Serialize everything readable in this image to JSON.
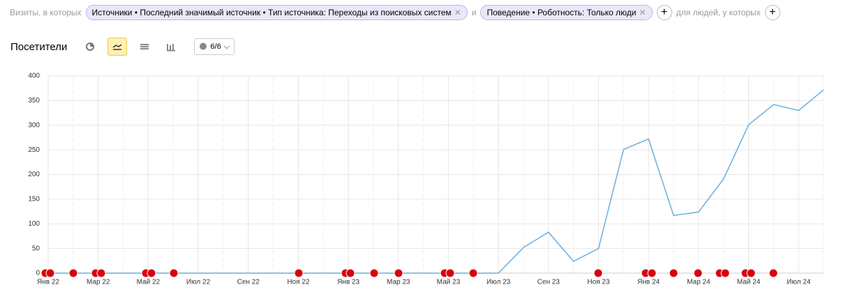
{
  "filters": {
    "prefix": "Визиты, в которых",
    "chips": [
      "Источники • Последний значимый источник • Тип источника: Переходы из поисковых систем",
      "Поведение • Роботность: Только люди"
    ],
    "joiner": "и",
    "suffix": "для людей, у которых"
  },
  "toolbar": {
    "title": "Посетители",
    "annotations": "6/6"
  },
  "chart_data": {
    "type": "line",
    "categories": [
      "Янв 22",
      null,
      "Мар 22",
      null,
      "Май 22",
      null,
      "Июл 22",
      null,
      "Сен 22",
      null,
      "Ноя 22",
      null,
      "Янв 23",
      null,
      "Мар 23",
      null,
      "Май 23",
      null,
      "Июл 23",
      null,
      "Сен 23",
      null,
      "Ноя 23",
      null,
      "Янв 24",
      null,
      "Мар 24",
      null,
      "Май 24",
      null,
      "Июл 24",
      null
    ],
    "series": [
      {
        "name": "Посетители",
        "color": "#6aaee0",
        "values": [
          0,
          0,
          0,
          0,
          0,
          0,
          0,
          0,
          0,
          0,
          0,
          0,
          0,
          0,
          0,
          0,
          0,
          0,
          0,
          52,
          83,
          24,
          50,
          251,
          272,
          117,
          124,
          191,
          301,
          342,
          330,
          372
        ]
      }
    ],
    "ylim": [
      0,
      400
    ],
    "yticks": [
      0,
      50,
      100,
      150,
      200,
      250,
      300,
      350,
      400
    ],
    "grid": true
  }
}
